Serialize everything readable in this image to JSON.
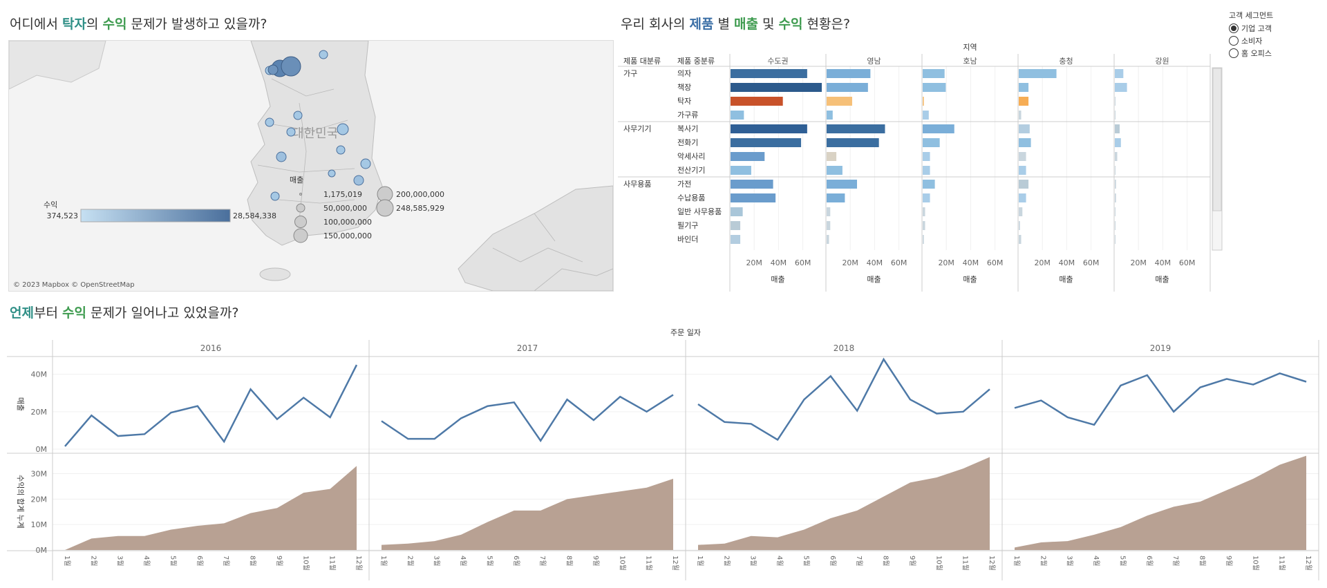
{
  "titles": {
    "map": {
      "pre": "어디에서 ",
      "h1": "탁자",
      "mid": "의 ",
      "h2": "수익",
      "post": " 문제가 발생하고 있을까?"
    },
    "bars": {
      "pre": "우리 회사의 ",
      "h1": "제품",
      "mid1": " 별 ",
      "h2": "매출",
      "mid2": " 및 ",
      "h3": "수익",
      "post": " 현황은?"
    },
    "time": {
      "h1": "언제",
      "mid": "부터 ",
      "h2": "수익",
      "post": " 문제가 일어나고 있었을까?"
    }
  },
  "filter": {
    "label": "고객 세그먼트",
    "options": [
      {
        "label": "기업 고객",
        "selected": true
      },
      {
        "label": "소비자",
        "selected": false
      },
      {
        "label": "홈 오피스",
        "selected": false
      }
    ]
  },
  "map": {
    "country_label": "대한민국",
    "attribution": "© 2023 Mapbox © OpenStreetMap",
    "profit_legend": {
      "title": "수익",
      "min": "374,523",
      "max": "28,584,338",
      "color_low": "#c6e0f2",
      "color_high": "#4a6f9c"
    },
    "size_legend": {
      "title": "매출",
      "items": [
        "1,175,019",
        "50,000,000",
        "100,000,000",
        "150,000,000",
        "200,000,000",
        "248,585,929"
      ]
    }
  },
  "bar_chart": {
    "region_header": "지역",
    "col_cat": "제품 대분류",
    "col_sub": "제품 중분류",
    "regions": [
      "수도권",
      "영남",
      "호남",
      "충청",
      "강원"
    ],
    "axis_ticks": [
      "20M",
      "40M",
      "60M"
    ],
    "axis_title": "매출",
    "groups": [
      {
        "name": "가구",
        "subs": [
          "의자",
          "책장",
          "탁자",
          "가구류"
        ]
      },
      {
        "name": "사무기기",
        "subs": [
          "복사기",
          "전화기",
          "악세사리",
          "전산기기"
        ]
      },
      {
        "name": "사무용품",
        "subs": [
          "가전",
          "수납용품",
          "일반 사무용품",
          "필기구",
          "바인더"
        ]
      }
    ]
  },
  "chart_data": [
    {
      "type": "bar",
      "title": "우리 회사의 제품 별 매출 및 수익 현황은?",
      "xlabel": "매출",
      "xlim": [
        0,
        75000000
      ],
      "categories": [
        "의자",
        "책장",
        "탁자",
        "가구류",
        "복사기",
        "전화기",
        "악세사리",
        "전산기기",
        "가전",
        "수납용품",
        "일반 사무용품",
        "필기구",
        "바인더"
      ],
      "series": [
        {
          "name": "수도권",
          "values": [
            63,
            75,
            43,
            11,
            63,
            58,
            28,
            17,
            35,
            37,
            10,
            8,
            8
          ],
          "colors": [
            "#3b6ea0",
            "#2c5a8c",
            "#c8522a",
            "#8fbfe0",
            "#2f5f95",
            "#3b6ea0",
            "#6a9ccc",
            "#8fbfe0",
            "#6a9ccc",
            "#6a9ccc",
            "#a9c6d9",
            "#b9cbd6",
            "#b3cde0"
          ]
        },
        {
          "name": "영남",
          "values": [
            36,
            34,
            21,
            5,
            48,
            43,
            8,
            13,
            25,
            15,
            3,
            3,
            2
          ],
          "colors": [
            "#7aaed8",
            "#7aaed8",
            "#f6c078",
            "#8fbfe0",
            "#3b6ea0",
            "#3b6ea0",
            "#d9d2c4",
            "#8fbfe0",
            "#7aaed8",
            "#7aaed8",
            "#c9d6de",
            "#c9d6de",
            "#c9d6de"
          ]
        },
        {
          "name": "호남",
          "values": [
            18,
            19,
            1,
            5,
            26,
            14,
            6,
            6,
            10,
            6,
            2,
            2,
            1
          ],
          "colors": [
            "#8fbfe0",
            "#8fbfe0",
            "#f6c078",
            "#a9cde8",
            "#7aaed8",
            "#8fbfe0",
            "#a9cde8",
            "#a9cde8",
            "#8fbfe0",
            "#a9cde8",
            "#c9d6de",
            "#c9d6de",
            "#c9d6de"
          ]
        },
        {
          "name": "충청",
          "values": [
            31,
            8,
            8,
            2,
            9,
            10,
            6,
            6,
            8,
            6,
            3,
            1,
            2
          ],
          "colors": [
            "#8fbfe0",
            "#8fbfe0",
            "#f6ad55",
            "#c9d6de",
            "#b3cde0",
            "#8fbfe0",
            "#c9d6de",
            "#a9cde8",
            "#b9cbd6",
            "#a9cde8",
            "#c9d6de",
            "#c9d6de",
            "#c9d6de"
          ]
        },
        {
          "name": "강원",
          "values": [
            7,
            10,
            0,
            0,
            4,
            5,
            2,
            0,
            1,
            1,
            0,
            0,
            0
          ],
          "colors": [
            "#a9cde8",
            "#a9cde8",
            "#c9d6de",
            "#c9d6de",
            "#b9cbd6",
            "#a9cde8",
            "#c9d6de",
            "#c9d6de",
            "#c9d6de",
            "#c9d6de",
            "#c9d6de",
            "#c9d6de",
            "#c9d6de"
          ]
        }
      ]
    },
    {
      "type": "line",
      "title": "언제부터 수익 문제가 일어나고 있었을까?",
      "header": "주문 일자",
      "years": [
        "2016",
        "2017",
        "2018",
        "2019"
      ],
      "x_labels": [
        "1월",
        "2월",
        "3월",
        "4월",
        "5월",
        "6월",
        "7월",
        "8월",
        "9월",
        "10월",
        "11월",
        "12월"
      ],
      "ylabel": "매출",
      "ylim": [
        0,
        48000000
      ],
      "yticks": [
        "0M",
        "20M",
        "40M"
      ],
      "color": "#4e79a7",
      "series": [
        {
          "name": "2016",
          "values": [
            1.5,
            18,
            7,
            8,
            19.5,
            23,
            4,
            32,
            16,
            27.5,
            17,
            45
          ]
        },
        {
          "name": "2017",
          "values": [
            15,
            5.5,
            5.5,
            16.5,
            23,
            25,
            4.5,
            26.5,
            15.5,
            28,
            20,
            29
          ]
        },
        {
          "name": "2018",
          "values": [
            24,
            14.5,
            13.5,
            5,
            26.5,
            39,
            20.5,
            48,
            26.5,
            19,
            20,
            32
          ]
        },
        {
          "name": "2019",
          "values": [
            22,
            26,
            17,
            13,
            34,
            39.5,
            20,
            33,
            37.5,
            34.5,
            40.5,
            36
          ]
        }
      ]
    },
    {
      "type": "area",
      "ylabel": "수익의 합계 누계",
      "ylim": [
        0,
        38000000
      ],
      "yticks": [
        "0M",
        "10M",
        "20M",
        "30M"
      ],
      "color": "#b8a193",
      "series": [
        {
          "name": "2016",
          "values": [
            0,
            4.5,
            5.5,
            5.5,
            8,
            9.5,
            10.5,
            14.5,
            16.5,
            22.5,
            24,
            33
          ]
        },
        {
          "name": "2017",
          "values": [
            2,
            2.5,
            3.5,
            6,
            11,
            15.5,
            15.5,
            20,
            21.5,
            23,
            24.5,
            28
          ]
        },
        {
          "name": "2018",
          "values": [
            2,
            2.5,
            5.5,
            5,
            8,
            12.5,
            15.5,
            21,
            26.5,
            28.5,
            32,
            36.5
          ]
        },
        {
          "name": "2019",
          "values": [
            1,
            3,
            3.5,
            6,
            9,
            13.5,
            17,
            19,
            23.5,
            28,
            33.5,
            37
          ]
        }
      ]
    }
  ]
}
